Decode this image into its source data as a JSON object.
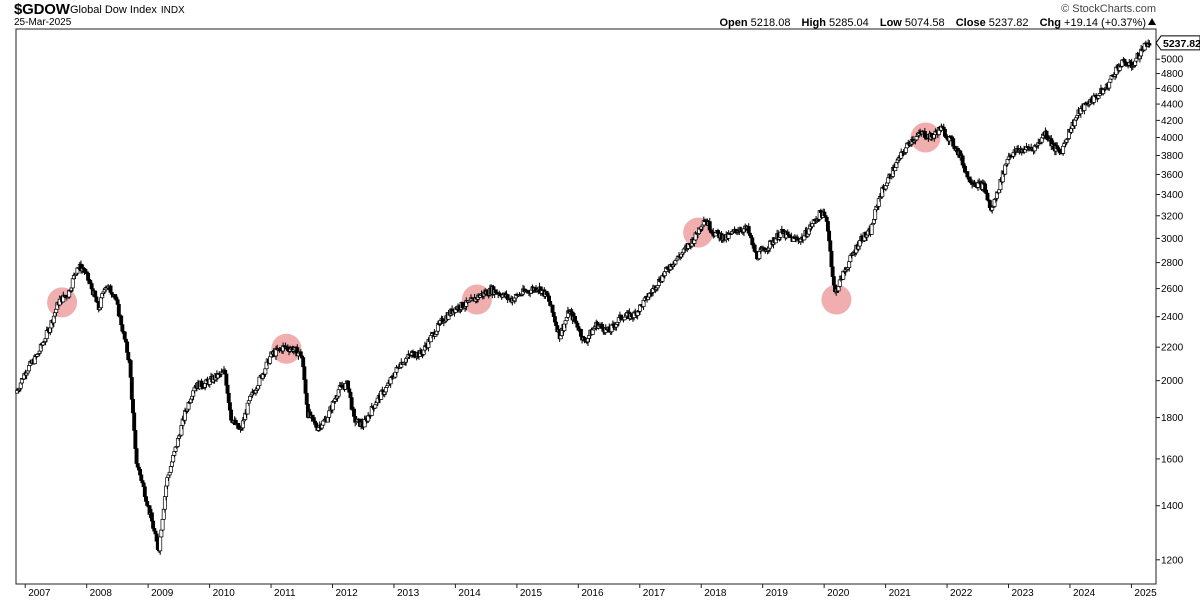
{
  "header": {
    "symbol": "$GDOW",
    "name": "Global Dow Index",
    "exchange": "INDX",
    "date": "25-Mar-2025",
    "brand": "© StockCharts.com",
    "open_label": "Open",
    "open": "5218.08",
    "high_label": "High",
    "high": "5285.04",
    "low_label": "Low",
    "low": "5074.58",
    "close_label": "Close",
    "close": "5237.82",
    "chg_label": "Chg",
    "chg": "+19.14 (+0.37%)"
  },
  "chart_data": {
    "type": "candlestick",
    "scale": "log",
    "grid": false,
    "ylim": [
      1120,
      5450
    ],
    "xlim": [
      2006.85,
      2025.4
    ],
    "y_ticks": [
      1200,
      1400,
      1600,
      1800,
      2000,
      2200,
      2400,
      2600,
      2800,
      3000,
      3200,
      3400,
      3600,
      3800,
      4000,
      4200,
      4400,
      4600,
      4800,
      5000
    ],
    "x_ticks": [
      "2007",
      "2008",
      "2009",
      "2010",
      "2011",
      "2012",
      "2013",
      "2014",
      "2015",
      "2016",
      "2017",
      "2018",
      "2019",
      "2020",
      "2021",
      "2022",
      "2023",
      "2024",
      "2025"
    ],
    "last_price_label": "5237.82",
    "last_price": 5237.82,
    "highlight_color": "#e46b6b",
    "highlights": [
      {
        "t": 2007.6,
        "price": 2500
      },
      {
        "t": 2011.25,
        "price": 2190
      },
      {
        "t": 2014.35,
        "price": 2520
      },
      {
        "t": 2017.95,
        "price": 3050
      },
      {
        "t": 2020.2,
        "price": 2520
      },
      {
        "t": 2021.65,
        "price": 4000
      }
    ],
    "path": [
      [
        2006.85,
        1930
      ],
      [
        2007.0,
        2050
      ],
      [
        2007.2,
        2150
      ],
      [
        2007.4,
        2330
      ],
      [
        2007.55,
        2510
      ],
      [
        2007.7,
        2560
      ],
      [
        2007.85,
        2770
      ],
      [
        2007.95,
        2750
      ],
      [
        2008.1,
        2580
      ],
      [
        2008.2,
        2450
      ],
      [
        2008.3,
        2630
      ],
      [
        2008.45,
        2560
      ],
      [
        2008.55,
        2380
      ],
      [
        2008.7,
        2100
      ],
      [
        2008.8,
        1600
      ],
      [
        2008.92,
        1480
      ],
      [
        2009.05,
        1350
      ],
      [
        2009.17,
        1230
      ],
      [
        2009.3,
        1500
      ],
      [
        2009.45,
        1650
      ],
      [
        2009.6,
        1820
      ],
      [
        2009.75,
        1970
      ],
      [
        2009.92,
        1980
      ],
      [
        2010.1,
        2020
      ],
      [
        2010.25,
        2050
      ],
      [
        2010.35,
        1800
      ],
      [
        2010.5,
        1730
      ],
      [
        2010.65,
        1890
      ],
      [
        2010.85,
        2030
      ],
      [
        2011.0,
        2150
      ],
      [
        2011.2,
        2200
      ],
      [
        2011.35,
        2190
      ],
      [
        2011.5,
        2150
      ],
      [
        2011.6,
        1820
      ],
      [
        2011.75,
        1750
      ],
      [
        2011.9,
        1790
      ],
      [
        2012.1,
        1950
      ],
      [
        2012.25,
        1980
      ],
      [
        2012.35,
        1790
      ],
      [
        2012.5,
        1760
      ],
      [
        2012.7,
        1880
      ],
      [
        2012.9,
        1970
      ],
      [
        2013.1,
        2100
      ],
      [
        2013.3,
        2160
      ],
      [
        2013.45,
        2160
      ],
      [
        2013.6,
        2260
      ],
      [
        2013.8,
        2380
      ],
      [
        2014.0,
        2460
      ],
      [
        2014.2,
        2490
      ],
      [
        2014.4,
        2550
      ],
      [
        2014.6,
        2590
      ],
      [
        2014.75,
        2560
      ],
      [
        2014.9,
        2520
      ],
      [
        2015.1,
        2570
      ],
      [
        2015.35,
        2610
      ],
      [
        2015.5,
        2540
      ],
      [
        2015.7,
        2270
      ],
      [
        2015.85,
        2440
      ],
      [
        2016.0,
        2330
      ],
      [
        2016.1,
        2230
      ],
      [
        2016.3,
        2350
      ],
      [
        2016.5,
        2300
      ],
      [
        2016.7,
        2400
      ],
      [
        2016.9,
        2410
      ],
      [
        2017.1,
        2520
      ],
      [
        2017.3,
        2650
      ],
      [
        2017.5,
        2780
      ],
      [
        2017.7,
        2880
      ],
      [
        2017.9,
        3010
      ],
      [
        2018.05,
        3180
      ],
      [
        2018.2,
        3050
      ],
      [
        2018.4,
        3000
      ],
      [
        2018.6,
        3080
      ],
      [
        2018.75,
        3080
      ],
      [
        2018.9,
        2850
      ],
      [
        2019.1,
        2940
      ],
      [
        2019.3,
        3050
      ],
      [
        2019.5,
        2990
      ],
      [
        2019.65,
        3000
      ],
      [
        2019.8,
        3120
      ],
      [
        2019.95,
        3230
      ],
      [
        2020.05,
        3150
      ],
      [
        2020.17,
        2560
      ],
      [
        2020.3,
        2700
      ],
      [
        2020.45,
        2850
      ],
      [
        2020.6,
        3000
      ],
      [
        2020.75,
        3050
      ],
      [
        2020.9,
        3380
      ],
      [
        2021.0,
        3500
      ],
      [
        2021.2,
        3740
      ],
      [
        2021.4,
        3960
      ],
      [
        2021.6,
        4050
      ],
      [
        2021.75,
        4000
      ],
      [
        2021.9,
        4110
      ],
      [
        2022.05,
        3980
      ],
      [
        2022.2,
        3820
      ],
      [
        2022.35,
        3560
      ],
      [
        2022.5,
        3500
      ],
      [
        2022.6,
        3480
      ],
      [
        2022.72,
        3240
      ],
      [
        2022.85,
        3480
      ],
      [
        2023.0,
        3800
      ],
      [
        2023.15,
        3850
      ],
      [
        2023.3,
        3870
      ],
      [
        2023.45,
        3900
      ],
      [
        2023.6,
        4060
      ],
      [
        2023.75,
        3880
      ],
      [
        2023.85,
        3830
      ],
      [
        2024.0,
        4090
      ],
      [
        2024.15,
        4300
      ],
      [
        2024.3,
        4420
      ],
      [
        2024.45,
        4510
      ],
      [
        2024.6,
        4620
      ],
      [
        2024.75,
        4860
      ],
      [
        2024.88,
        4960
      ],
      [
        2025.0,
        4900
      ],
      [
        2025.12,
        5060
      ],
      [
        2025.25,
        5240
      ],
      [
        2025.3,
        5237.82
      ]
    ]
  }
}
